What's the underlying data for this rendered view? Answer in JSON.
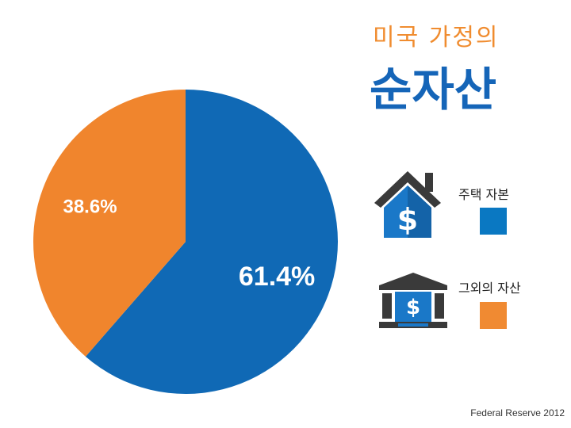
{
  "header": {
    "subtitle": "미국 가정의",
    "title": "순자산"
  },
  "legend": {
    "items": [
      {
        "label": "주택 자본",
        "color": "#1069b5",
        "icon": "house-dollar-icon"
      },
      {
        "label": "그외의 자산",
        "color": "#f0852d",
        "icon": "bank-dollar-icon"
      }
    ]
  },
  "source": "Federal Reserve 2012",
  "chart_data": {
    "type": "pie",
    "slices": [
      {
        "label": "주택 자본",
        "value": 61.4,
        "value_label": "61.4%",
        "color": "#1069b5"
      },
      {
        "label": "그외의 자산",
        "value": 38.6,
        "value_label": "38.6%",
        "color": "#f0852d"
      }
    ],
    "start": "12 o'clock",
    "direction": "clockwise"
  }
}
